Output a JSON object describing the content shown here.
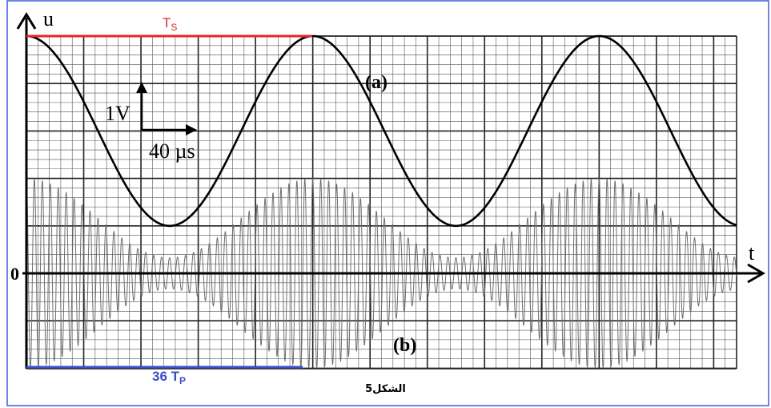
{
  "figure": {
    "axis_y_label": "u",
    "axis_x_label": "t",
    "origin_label": "0",
    "curve_a_label": "(a)",
    "curve_b_label": "(b)",
    "scale_v_label": "1V",
    "scale_t_label": "40 µs",
    "ts_label_main": "T",
    "ts_label_sub": "S",
    "tp_label_prefix": "36 ",
    "tp_label_main": "T",
    "tp_label_sub": "P",
    "caption": "الشكل5"
  },
  "colors": {
    "ts_marker": "#e8262a",
    "tp_marker": "#3a4fc8",
    "frame_border": "#3b5bdb",
    "curves": "#000000",
    "carrier": "#6e6e6e"
  },
  "chart_data": {
    "type": "line",
    "scales": {
      "volt_per_division": 1,
      "time_per_division_us": 40
    },
    "series": [
      {
        "name": "(a)",
        "kind": "sinusoid",
        "period_divisions": 5,
        "peak_div": 5,
        "trough_div": 1
      },
      {
        "name": "(b)",
        "kind": "am_modulated",
        "envelope_period_divisions": 5,
        "max_amplitude_div": 2,
        "min_amplitude_div": 0.33,
        "carrier_cycles_per_envelope": 36
      }
    ],
    "markers": [
      {
        "label": "Ts",
        "span_divisions": 5
      },
      {
        "label": "36 Tp",
        "span_divisions": 5
      }
    ]
  }
}
